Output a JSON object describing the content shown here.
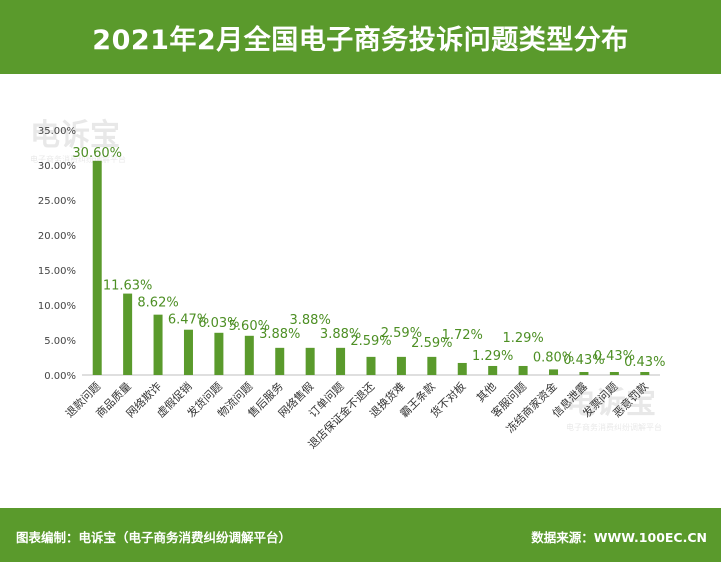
{
  "header": {
    "title": "2021年2月全国电子商务投诉问题类型分布"
  },
  "footer": {
    "credit": "图表编制：电诉宝（电子商务消费纠纷调解平台）",
    "source": "数据来源：WWW.100EC.CN"
  },
  "watermark": {
    "text": "电诉宝",
    "subtext": "电子商务消费纠纷调解平台"
  },
  "colors": {
    "brand_green": "#5a9a2c",
    "bar": "#5a9a2c",
    "label": "#4d8f24"
  },
  "chart_data": {
    "type": "bar",
    "title": "2021年2月全国电子商务投诉问题类型分布",
    "xlabel": "",
    "ylabel": "",
    "ylim": [
      0,
      35
    ],
    "ytick_step": 5,
    "ytick_labels": [
      "0.00%",
      "5.00%",
      "10.00%",
      "15.00%",
      "20.00%",
      "25.00%",
      "30.00%",
      "35.00%"
    ],
    "grid": false,
    "legend": "none",
    "categories": [
      "退款问题",
      "商品质量",
      "网络欺诈",
      "虚假促销",
      "发货问题",
      "物流问题",
      "售后服务",
      "网络售假",
      "订单问题",
      "退店保证金不退还",
      "退换货难",
      "霸王条款",
      "货不对板",
      "其他",
      "客服问题",
      "冻结商家资金",
      "信息泄露",
      "发票问题",
      "恶意罚款"
    ],
    "values": [
      30.6,
      11.63,
      8.62,
      6.47,
      6.03,
      5.6,
      3.88,
      3.88,
      3.88,
      2.59,
      2.59,
      2.59,
      1.72,
      1.29,
      1.29,
      0.8,
      0.43,
      0.43,
      0.43
    ],
    "data_labels": [
      "30.60%",
      "11.63%",
      "8.62%",
      "6.47%",
      "6.03%",
      "5.60%",
      "3.88%",
      "3.88%",
      "3.88%",
      "2.59%",
      "2.59%",
      "2.59%",
      "1.72%",
      "1.29%",
      "1.29%",
      "0.80%",
      "0.43%",
      "0.43%",
      "0.43%"
    ]
  }
}
